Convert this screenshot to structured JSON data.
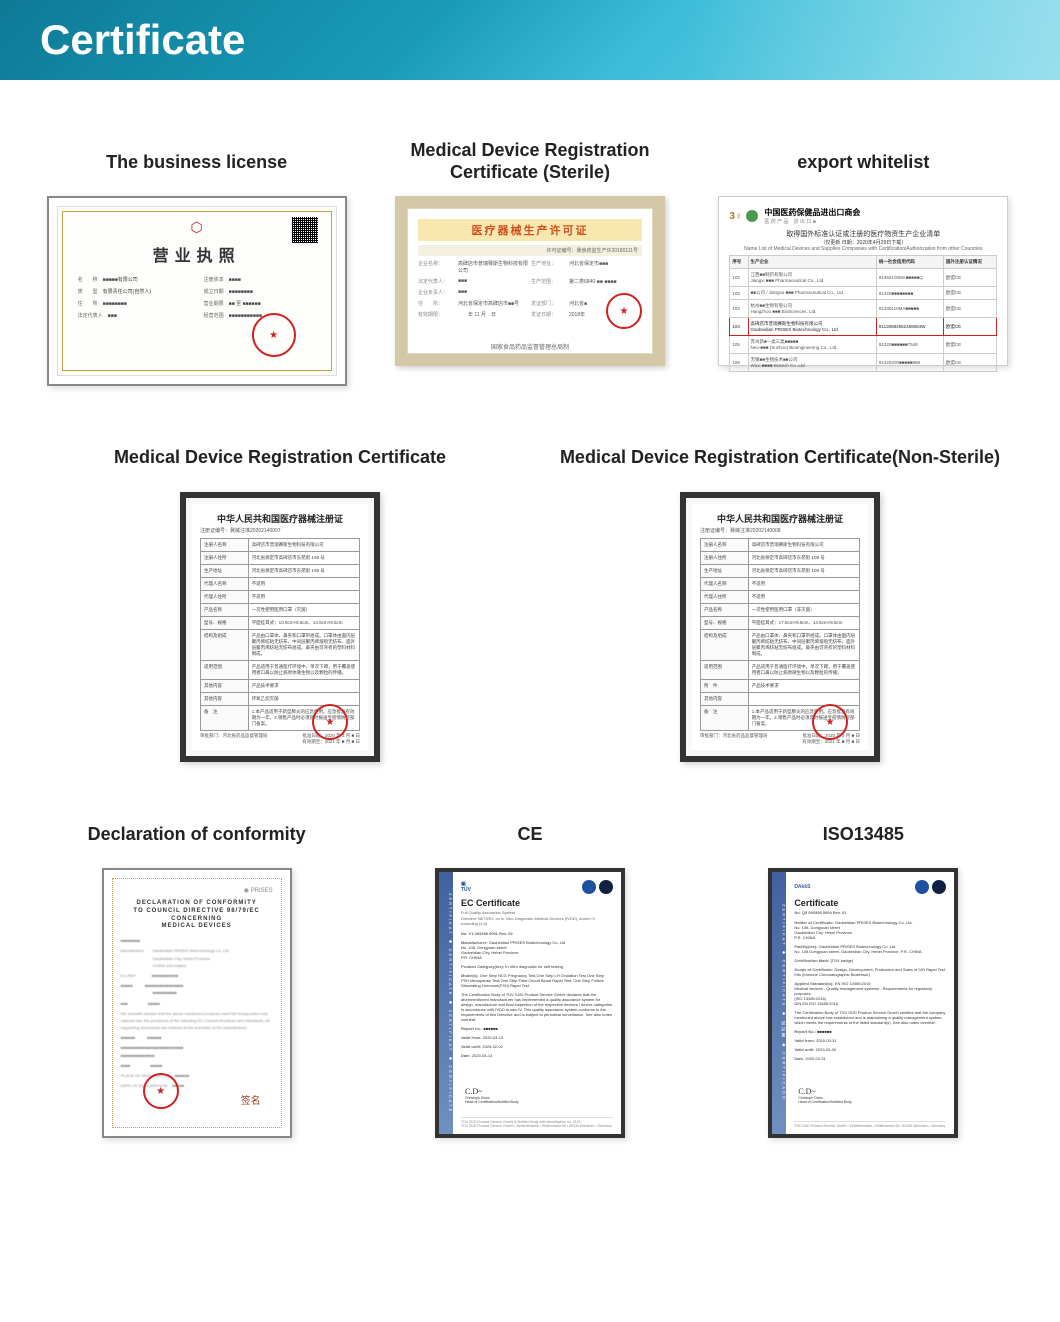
{
  "header": {
    "title": "Certificate"
  },
  "row1": {
    "biz": {
      "title": "The business license",
      "doc_title": "营业执照",
      "fields_left": [
        {
          "label": "名　　称",
          "value": "■■■■■有限公司"
        },
        {
          "label": "类　　型",
          "value": "有限责任公司(自然人)"
        },
        {
          "label": "住　　所",
          "value": "■■■■■■■■"
        },
        {
          "label": "法定代表人",
          "value": "■■■"
        }
      ],
      "fields_right": [
        {
          "label": "注册资本",
          "value": "■■■■"
        },
        {
          "label": "成立日期",
          "value": "■■■■■■■■"
        },
        {
          "label": "营业期限",
          "value": "■■ 至 ■■■■■■"
        },
        {
          "label": "经营范围",
          "value": "■■■■■■■■■■■"
        }
      ]
    },
    "sterile": {
      "title": "Medical Device Registration Certificate (Sterile)",
      "doc_title": "医疗器械生产许可证",
      "cert_no_label": "许可证编号：",
      "cert_no": "冀食药监生产许20180111号",
      "rows": [
        {
          "k1": "企业名称：",
          "v1": "高碑店市普瑞赛斯生物科技有限公司",
          "k2": "生产地址：",
          "v2": "河北省保定市■■■"
        },
        {
          "k1": "法定代表人：",
          "v1": "■■■",
          "k2": "生产范围：",
          "v2": "第二类6840-■■-■■■■"
        },
        {
          "k1": "企业负责人：",
          "v1": "■■■",
          "k2": "",
          "v2": ""
        },
        {
          "k1": "住　　所：",
          "v1": "河北省保定市高碑店市■■号",
          "k2": "发证部门：",
          "v2": "河北省■"
        },
        {
          "k1": "有效期限：",
          "v1": "　　年 11 月　日",
          "k2": "发证日期：",
          "v2": "2018年"
        }
      ],
      "footer": "国家食品药品监督管理总局制"
    },
    "whitelist": {
      "title": "export whitelist",
      "header_org": "中国医药保健品进出口商会",
      "header_org_sub": "医 药 产 品　进 出 口 ■",
      "sub1": "取得国外标准认证或注册的医疗物资生产企业清单",
      "sub2": "（仅更新 日期：2020年4月29日下载）",
      "sub3": "Name List of Medical Devices and Supplies Companies with Certification/Authorization from other Countries",
      "columns": [
        "序号",
        "生产企业",
        "统一社会信用代码",
        "国外注册认证情况"
      ],
      "rows": [
        {
          "no": "102",
          "name_cn": "江西■■制药有限公司",
          "name_en": "Jiangxi ■■■ Pharmaceutical Co., Ltd",
          "code": "91360100MA■■■■■Q",
          "cert": "欧盟CE",
          "hl": false
        },
        {
          "no": "103",
          "name_cn": "■■公司 / Jiangsu ■■■ Pharmaceutical Co., Ltd.",
          "name_en": "",
          "code": "91320■■■■■■■■",
          "cert": "欧盟CE",
          "hl": false
        },
        {
          "no": "103",
          "name_cn": "杭州■■生物有限公司",
          "name_en": "Hangzhou ■■■ BioSciences, Ltd.",
          "code": "91330110MA■■■■■",
          "cert": "欧盟CE",
          "hl": false
        },
        {
          "no": "104",
          "name_cn": "高碑店市普瑞赛斯生物科技有限公司",
          "name_en": "Gaobeidian PRISES Biotechnology Co., Ltd",
          "code": "91130684552489064W",
          "cert": "欧盟CE",
          "hl": true
        },
        {
          "no": "105",
          "name_cn": "苏州新■一类三类■■■■■",
          "name_en": "Neo-■■■ (Suzhou) Bioengineering Co., Ltd.",
          "code": "91320■■■■■■7548",
          "cert": "欧盟CE",
          "hl": false
        },
        {
          "no": "106",
          "name_cn": "无锡■■生物技术■■公司",
          "name_en": "Wuxi ■■■■ Biotech Co.,Ltd",
          "code": "91320200■■■■■968",
          "cert": "欧盟CE",
          "hl": false
        }
      ]
    }
  },
  "row2": {
    "reg": {
      "title": "Medical Device Registration Certificate",
      "doc_title": "中华人民共和国医疗器械注册证",
      "doc_sub": "注册证编号：冀械注准20202140007",
      "rows": [
        {
          "k": "注册人名称",
          "v": "高碑店市普瑞赛斯生物科技有限公司"
        },
        {
          "k": "注册人住所",
          "v": "河北省保定市高碑店市东苑街 108 号"
        },
        {
          "k": "生产地址",
          "v": "河北省保定市高碑店市东苑街 108 号"
        },
        {
          "k": "代理人名称",
          "v": "不适用"
        },
        {
          "k": "代理人住所",
          "v": "不适用"
        },
        {
          "k": "产品名称",
          "v": "一次性使用医用口罩（灭菌）"
        },
        {
          "k": "型号、规格",
          "v": "平面挂耳式：10.5cm×8.5cm、14.5cm×9.5cm"
        },
        {
          "k": "结构及组成",
          "v": "产品由口罩体、鼻夹和口罩带组成。口罩体由面内层聚丙烯纺粘无纺布、中间层聚丙烯熔喷无纺布、面外层聚丙烯纺粘无纺布组成。鼻夹由可弯折的塑料材料制成。"
        },
        {
          "k": "适用范围",
          "v": "产品适用于普通医疗环境中，单次下蹲，用于覆盖使用者口鼻以防止病原体微生物以及颗粒的传播。"
        },
        {
          "k": "其他内容",
          "v": "产品技术要求"
        },
        {
          "k": "其他内容",
          "v": "环氧乙烷灭菌"
        },
        {
          "k": "备　注",
          "v": "1.本产品适用于新型肺炎的应急使用。应急批准有效期为一年。2.销售产品时必须及时报送至疫情防控部门备案。"
        }
      ],
      "footer_l": "审批部门：河北省药品监督管理局",
      "footer_r": "批准日期：2020 年 3 月 ■ 日\n有效期至：2021 年 ■ 月 ■ 日"
    },
    "reg_ns": {
      "title": "Medical Device Registration Certificate(Non-Sterile)",
      "doc_title": "中华人民共和国医疗器械注册证",
      "doc_sub": "注册证编号：冀械注准20202140008",
      "rows": [
        {
          "k": "注册人名称",
          "v": "高碑店市普瑞赛斯生物科技有限公司"
        },
        {
          "k": "注册人住所",
          "v": "河北省保定市高碑店市东苑街 108 号"
        },
        {
          "k": "生产地址",
          "v": "河北省保定市高碑店市东苑街 108 号"
        },
        {
          "k": "代理人名称",
          "v": "不适用"
        },
        {
          "k": "代理人住所",
          "v": "不适用"
        },
        {
          "k": "产品名称",
          "v": "一次性使用医用口罩（非灭菌）"
        },
        {
          "k": "型号、规格",
          "v": "平面挂耳式：17.5cm×9.5cm、14.5cm×9.5cm"
        },
        {
          "k": "结构及组成",
          "v": "产品由口罩体、鼻夹和口罩带组成。口罩体由面内层聚丙烯纺粘无纺布、中间层聚丙烯熔喷无纺布、面外层聚丙烯纺粘无纺布组成。鼻夹由可弯折的塑料材料制成。"
        },
        {
          "k": "适用范围",
          "v": "产品适用于普通医疗环境中，单次下蹲，用于覆盖使用者口鼻以防止病原微生物以及颗粒的传播。"
        },
        {
          "k": "附　件",
          "v": "产品技术要求"
        },
        {
          "k": "其他内容",
          "v": ""
        },
        {
          "k": "备　注",
          "v": "1.本产品适用于新型肺炎的应急使用。应急批准有效期为一年。2.销售产品时必须及时报送至疫情防控部门备案。"
        }
      ],
      "footer_l": "审批部门：河北省药品监督管理局",
      "footer_r": "批准日期：2020 年 3 月 ■ 日\n有效期至：2021 年 ■ 月 ■ 日"
    }
  },
  "row3": {
    "doc": {
      "title": "Declaration of conformity",
      "logo": "◉ PRISES",
      "doc_title": "DECLARATION OF CONFORMITY\nTO COUNCIL DIRECTIVE 98/79/EC CONCERNING\nMEDICAL DEVICES",
      "lines": [
        "■■■■■■■■",
        "Manufacturer　　Gaobeidian PRISES Biotechnology Co.,Ltd\n　　　　　　　　Gaobeidian City, Hebei Province\n　　　　　　　　CHINA  and related",
        "EC-REP　　　　■■■■■■■■■■■",
        "■■■■■　　　■■■■■■■■■■■■■■■■\n　　　　　　　　■■■■■■■■■■",
        "■■■　　　　　■■■■■",
        "We herewith declare that the above mentioned products meet the transposition into national law, the provisions of the following EC Council Directives and Standards. All supporting documents are retained at the premises of the manufacturer.",
        "■■■■■■　　　■■■■■■",
        "■■■■■■■■■■■■■■■■■■■■■■■■■■\n■■■■■■■■■■■■■■",
        "■■■■　　　　　■■■■■",
        "PLACE OF DECLARATION:　■■■■■■",
        "DATE OF DECLARATION:　■■■■■"
      ],
      "signature": "签名"
    },
    "ce": {
      "title": "CE",
      "sidebar": "ZERTIFIKAT ◆ CERTIFICATE ◆ ZERTIFIKAT ◆ CERTIFICATE",
      "doc_title": "EC Certificate",
      "doc_sub": "Full Quality Assurance System\nDirective 98/79/EC on In Vitro Diagnostic Medical Devices (IVDD), Annex IV excluding (4,6)",
      "cert_no": "No. V1 093398 0001 Rev. 02",
      "fields": [
        {
          "label": "Manufacturer:",
          "value": "Gaobeidian PRISES Biotechnology Co.,Ltd.\nNo. 108, Dongyuan street\nGaobeidian City, Hebei Province\nP.R. CHINA"
        },
        {
          "label": "Product Category(ies):",
          "value": "In Vitro diagnostic for self testing"
        },
        {
          "label": "Model(s):",
          "value": "One Step HCG Pregnancy Test,One Step LH Ovulation Test,One Step FSH Menopause Test,One Step Fetal Occult Blood Rapid Test, One Step Follicle Stimulating Hormone(FSH) Rapid Test"
        },
        {
          "label": "",
          "value": "The Certification Body of TÜV SÜD Product Service GmbH declares that the aforementioned manufacturer has implemented a quality assurance system for design, manufacture and final inspection of the respective devices / device categories in accordance with IVDD Annex IV. This quality assurance system conforms to the requirements of this Directive and is subject to periodical surveillance. See also notes overleaf."
        },
        {
          "label": "Report no.:",
          "value": "■■■■■■"
        },
        {
          "label": "Valid from:",
          "value": "2020-04-13"
        },
        {
          "label": "Valid until:",
          "value": "2025-02-02"
        },
        {
          "label": "Date,",
          "value": "2020-04-13"
        }
      ],
      "sig_name": "Christoph Dicks\nHead of Certification/Notified Body",
      "footer": "TÜV SÜD Product Service GmbH is Notified Body with identification no. 0123\nTÜV SÜD Product Service GmbH • Zertifizierstelle • Ridlerstraße 65 • 80339 München • Germany"
    },
    "iso": {
      "title": "ISO13485",
      "sidebar": "ZERTIFIKAT ◆ CERTIFICATE ◆ 認証書 ◆ CERTIFICADO",
      "dakks": "DAkkS",
      "doc_title": "Certificate",
      "doc_sub": "No. Q5 093398 0004 Rev. 01",
      "fields": [
        {
          "label": "Holder of Certificate:",
          "value": "Gaobeidian PRISES Biotechnology Co.,Ltd.\nNo. 108, Dongyuan street\nGaobeidian City, Hebei Province\nP.R. CHINA"
        },
        {
          "label": "Facility(ies):",
          "value": "Gaobeidian PRISES Biotechnology Co.,Ltd.\nNo. 108 Dongyuan street, Gaobeidian City, Hebei Province, P.R. CHINA"
        },
        {
          "label": "Certification Mark:",
          "value": "[TÜV badge]"
        },
        {
          "label": "Scope of Certificate:",
          "value": "Design, Development, Production and Sales of IVD Rapid Test Kits (Immune Chromatographic Biosensor)"
        },
        {
          "label": "Applied Standard(s):",
          "value": "EN ISO 13485:2016\nMedical devices - Quality management systems - Requirements for regulatory purposes\n(ISO 13485:2016)\nDIN EN ISO 13485:2016"
        },
        {
          "label": "",
          "value": "The Certification Body of TÜV SÜD Product Service GmbH certifies that the company mentioned above has established and is maintaining a quality management system, which meets the requirements of the listed standard(s). See also notes overleaf."
        },
        {
          "label": "Report No.:",
          "value": "■■■■■■"
        },
        {
          "label": "Valid from:",
          "value": "2020-03-31"
        },
        {
          "label": "Valid until:",
          "value": "2023-03-30"
        },
        {
          "label": "Date,",
          "value": "2020-03-31"
        }
      ],
      "sig_name": "Christoph Dicks\nHead of Certification/Notified Body",
      "footer": "TÜV SÜD Product Service GmbH • Zertifizierstelle • Ridlerstraße 65 • 80339 München • Germany"
    }
  }
}
